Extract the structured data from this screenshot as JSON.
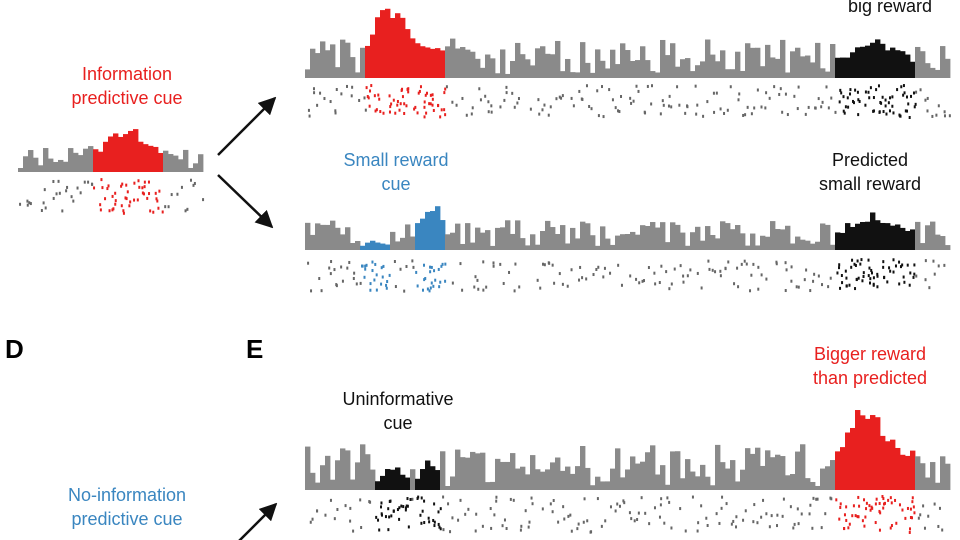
{
  "panels": {
    "d": "D",
    "e": "E"
  },
  "labels": {
    "predicted_big": [
      "big reward"
    ],
    "information_cue": [
      "Information",
      "predictive cue"
    ],
    "small_reward_cue": [
      "Small reward",
      "cue"
    ],
    "predicted_small": [
      "Predicted",
      "small reward"
    ],
    "uninformative_cue": [
      "Uninformative",
      "cue"
    ],
    "bigger_reward": [
      "Bigger reward",
      "than predicted"
    ],
    "no_information_cue": [
      "No-information",
      "predictive cue"
    ]
  }
}
